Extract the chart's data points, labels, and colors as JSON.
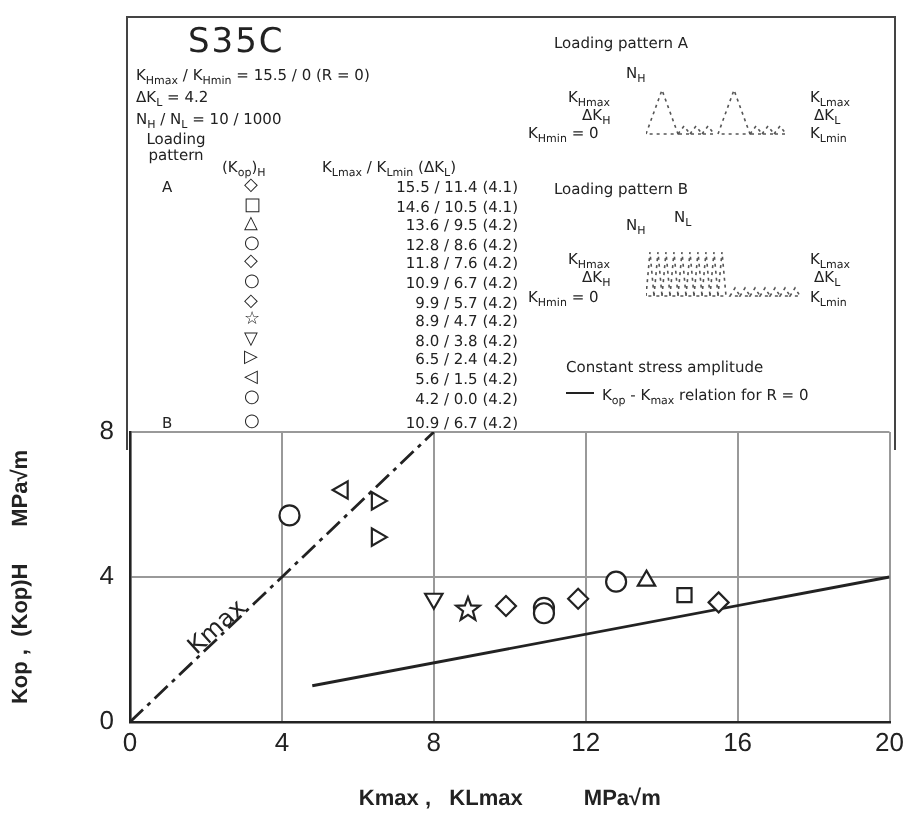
{
  "chart_data": {
    "type": "scatter",
    "xlabel": "Kmax ,   KLmax          MPa√m",
    "ylabel": "Kop ,  (Kop)H      MPa√m",
    "xlim": [
      0,
      20
    ],
    "xticks": [
      0,
      4,
      8,
      12,
      16,
      20
    ],
    "ylim": [
      0,
      8
    ],
    "yticks": [
      0,
      4,
      8
    ],
    "grid": true,
    "legend": "top right",
    "series": [
      {
        "color": "#222222",
        "marker": "diamond",
        "x": [
          15.5,
          11.8,
          9.9
        ],
        "values": [
          3.3,
          3.4,
          3.2
        ]
      },
      {
        "color": "#222222",
        "marker": "square",
        "x": [
          14.6
        ],
        "values": [
          3.5
        ]
      },
      {
        "color": "#222222",
        "marker": "triangle",
        "x": [
          13.6
        ],
        "values": [
          3.9
        ]
      },
      {
        "color": "#222222",
        "marker": "circle",
        "x": [
          12.8,
          10.9,
          10.9,
          4.2
        ],
        "values": [
          3.87,
          3.15,
          3.0,
          5.7
        ]
      },
      {
        "color": "#222222",
        "marker": "star",
        "x": [
          8.9
        ],
        "values": [
          3.1
        ]
      },
      {
        "color": "#222222",
        "marker": "triangle-down",
        "x": [
          8.0
        ],
        "values": [
          3.4
        ]
      },
      {
        "color": "#222222",
        "marker": "triangle-right",
        "x": [
          6.5,
          6.5
        ],
        "values": [
          6.1,
          5.1
        ]
      },
      {
        "color": "#222222",
        "marker": "triangle-left",
        "x": [
          5.6
        ],
        "values": [
          6.4
        ]
      },
      {
        "type": "line",
        "color": "#222222",
        "marker": "none",
        "line_style": "dashed",
        "x": [
          0,
          8
        ],
        "values": [
          0,
          8
        ]
      },
      {
        "type": "line",
        "name": "K$_{op}$ - K$_{max}$ relation for R = 0",
        "color": "#222222",
        "marker": "none",
        "line_style": "solid",
        "x": [
          4.8,
          20
        ],
        "values": [
          1.0,
          4.0
        ]
      }
    ],
    "annotations": [
      "S35C",
      "K$_{Hmax}$ / K$_{Hmin}$ = 15.5 / 0  (R = 0)",
      "ΔK$_{L}$ = 4.2",
      "N$_{H}$ / N$_{L}$ = 10 / 1000",
      "Loading pattern",
      "(K$_{op}$)$_{H}$",
      "K$_{Lmax}$ / K$_{Lmin}$ (ΔK$_{L}$)",
      "A",
      "◇",
      "15.5 / 11.4 (4.1)",
      "□",
      "14.6 / 10.5 (4.1)",
      "△",
      "13.6 / 9.5 (4.2)",
      "○",
      "12.8 / 8.6 (4.2)",
      "◇",
      "11.8 / 7.6 (4.2)",
      "○",
      "10.9 / 6.7 (4.2)",
      "◇",
      "9.9 / 5.7 (4.2)",
      "☆",
      "8.9 / 4.7 (4.2)",
      "▽",
      "8.0 / 3.8 (4.2)",
      "▷",
      "6.5 / 2.4 (4.2)",
      "◁",
      "5.6 / 1.5 (4.2)",
      "○",
      "4.2 / 0.0 (4.2)",
      "B",
      "○",
      "10.9 / 6.7 (4.2)",
      "Loading pattern   A",
      "N$_{H}$",
      "K$_{Hmax}$",
      "ΔK$_{H}$",
      "K$_{Hmin}$ = 0",
      "K$_{Lmax}$",
      "ΔK$_{L}$",
      "K$_{Lmin}$",
      "Loading pattern   B",
      "N$_{H}$",
      "N$_{L}$",
      "K$_{Hmax}$",
      "ΔK$_{H}$",
      "K$_{Hmin}$ = 0",
      "K$_{Lmax}$",
      "ΔK$_{L}$",
      "K$_{Lmin}$",
      "Constant stress amplitude",
      {
        "text": "Kmax",
        "x": 2.3,
        "y": 2.6
      }
    ]
  }
}
